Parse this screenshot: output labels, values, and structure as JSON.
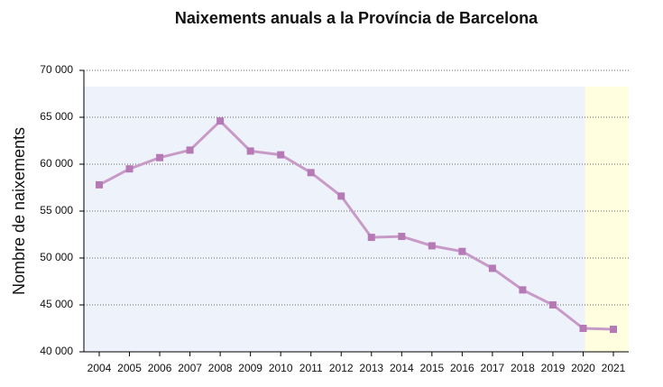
{
  "chart_data": {
    "type": "line",
    "title": "Naixements anuals a la Província de Barcelona",
    "y_label": "Nombre de naixements",
    "categories": [
      "2004",
      "2005",
      "2006",
      "2007",
      "2008",
      "2009",
      "2010",
      "2011",
      "2012",
      "2013",
      "2014",
      "2015",
      "2016",
      "2017",
      "2018",
      "2019",
      "2020",
      "2021"
    ],
    "values": [
      57800,
      59500,
      60700,
      61500,
      64600,
      61400,
      61000,
      59100,
      56600,
      52200,
      52300,
      51300,
      50700,
      48900,
      46600,
      45000,
      42500,
      42400
    ],
    "color": "#c89ac8",
    "marker_color": "#b57ab5",
    "plot_background": "#eef2fb",
    "highlight_color": "#ffffe0",
    "highlight_from": "2020",
    "ylim": [
      40000,
      70000
    ],
    "yticks": [
      {
        "value": 40000,
        "label": "40 000"
      },
      {
        "value": 45000,
        "label": "45 000"
      },
      {
        "value": 50000,
        "label": "50 000"
      },
      {
        "value": 55000,
        "label": "55 000"
      },
      {
        "value": 60000,
        "label": "60 000"
      },
      {
        "value": 65000,
        "label": "65 000"
      },
      {
        "value": 70000,
        "label": "70 000"
      }
    ],
    "grid": true
  }
}
